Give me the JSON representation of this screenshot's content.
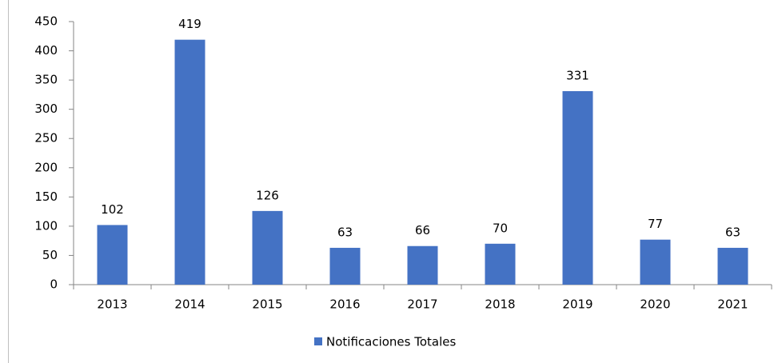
{
  "chart_data": {
    "type": "bar",
    "categories": [
      "2013",
      "2014",
      "2015",
      "2016",
      "2017",
      "2018",
      "2019",
      "2020",
      "2021"
    ],
    "series": [
      {
        "name": "Notificaciones Totales",
        "color": "#4472c4",
        "values": [
          102,
          419,
          126,
          63,
          66,
          70,
          331,
          77,
          63
        ]
      }
    ],
    "ylim": [
      0,
      450
    ],
    "yticks": [
      0,
      50,
      100,
      150,
      200,
      250,
      300,
      350,
      400,
      450
    ],
    "grid": false,
    "legend": "bottom"
  }
}
